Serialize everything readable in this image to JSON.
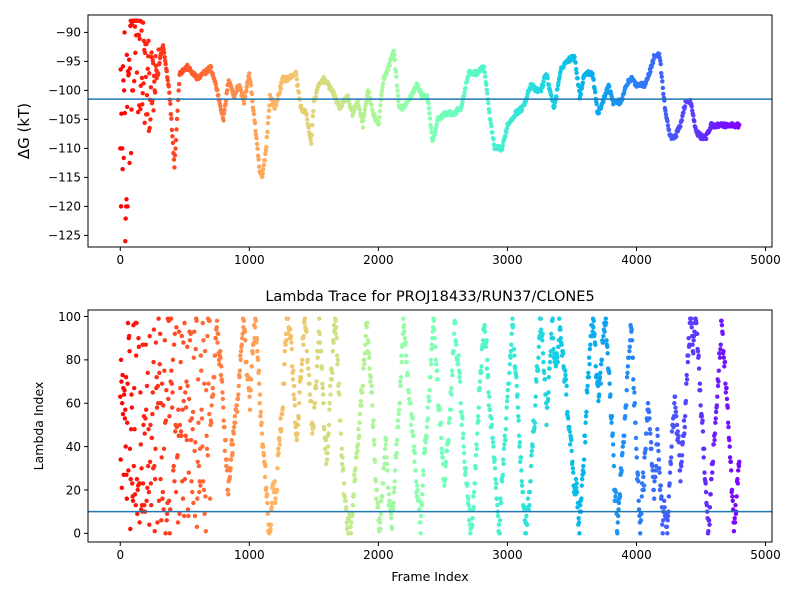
{
  "chart_data": [
    {
      "type": "scatter",
      "title": "",
      "xlabel": "",
      "ylabel": "ΔG (kT)",
      "xlim": [
        -250,
        5050
      ],
      "ylim": [
        -127,
        -87
      ],
      "xticks": [
        0,
        1000,
        2000,
        3000,
        4000,
        5000
      ],
      "yticks": [
        -90,
        -95,
        -100,
        -105,
        -110,
        -115,
        -120,
        -125
      ],
      "hline": -101.5,
      "hline_color": "#1f77b4",
      "colormap": "rainbow (early frames red, late frames violet)",
      "n_frames": 4800,
      "series": [
        {
          "x": [
            0,
            30,
            60,
            100,
            150,
            200,
            260,
            330,
            380,
            420,
            460,
            520,
            600,
            650,
            700,
            740,
            800,
            840,
            880,
            920,
            960,
            1000,
            1040,
            1080,
            1100,
            1130,
            1160,
            1200,
            1260,
            1300,
            1360,
            1400,
            1440,
            1480,
            1500,
            1540,
            1580,
            1640,
            1700,
            1760,
            1800,
            1840,
            1880,
            1920,
            1960,
            2000,
            2040,
            2080,
            2120,
            2160,
            2200,
            2250,
            2300,
            2340,
            2380,
            2420,
            2460,
            2520,
            2580,
            2640,
            2700,
            2760,
            2820,
            2860,
            2900,
            2960,
            3000,
            3060,
            3120,
            3180,
            3220,
            3260,
            3300,
            3360,
            3420,
            3460,
            3520,
            3560,
            3600,
            3660,
            3700,
            3740,
            3780,
            3820,
            3880,
            3920,
            3960,
            4000,
            4060,
            4100,
            4140,
            4180,
            4220,
            4260,
            4300,
            4340,
            4380,
            4420,
            4460,
            4500,
            4540,
            4580,
            4620,
            4680,
            4740,
            4800
          ],
          "y": [
            -100,
            -120,
            -106,
            -95,
            -93,
            -99,
            -100,
            -92,
            -100,
            -113,
            -97,
            -96,
            -98,
            -97,
            -96,
            -99,
            -105,
            -98,
            -101,
            -99,
            -102,
            -97,
            -105,
            -114,
            -115,
            -110,
            -101,
            -103,
            -98,
            -98,
            -97,
            -103,
            -104,
            -109,
            -102,
            -99,
            -98,
            -100,
            -103,
            -101,
            -104,
            -102,
            -106,
            -100,
            -104,
            -106,
            -98,
            -96,
            -93,
            -103,
            -103,
            -101,
            -99,
            -101,
            -101,
            -109,
            -105,
            -104,
            -104,
            -103,
            -97,
            -97,
            -96,
            -104,
            -110,
            -110,
            -106,
            -104,
            -103,
            -99,
            -100,
            -100,
            -97,
            -103,
            -96,
            -95,
            -94,
            -101,
            -97,
            -97,
            -104,
            -102,
            -99,
            -102,
            -102,
            -99,
            -98,
            -99,
            -99,
            -97,
            -94,
            -94,
            -103,
            -108,
            -108,
            -106,
            -102,
            -102,
            -107,
            -108,
            -108,
            -106,
            -106,
            -106,
            -106,
            -106
          ]
        }
      ]
    },
    {
      "type": "scatter",
      "title": "Lambda Trace for PROJ18433/RUN37/CLONE5",
      "xlabel": "Frame Index",
      "ylabel": "Lambda Index",
      "xlim": [
        -250,
        5050
      ],
      "ylim": [
        -4,
        103
      ],
      "xticks": [
        0,
        1000,
        2000,
        3000,
        4000,
        5000
      ],
      "yticks": [
        0,
        20,
        40,
        60,
        80,
        100
      ],
      "hline": 10,
      "hline_color": "#1f77b4",
      "colormap": "rainbow (early frames red, late frames violet)",
      "n_frames": 4800,
      "description_of_values": "Lambda index oscillates between 0 and 99 roughly every 120 frames; points cover the full range throughout the trajectory."
    }
  ]
}
